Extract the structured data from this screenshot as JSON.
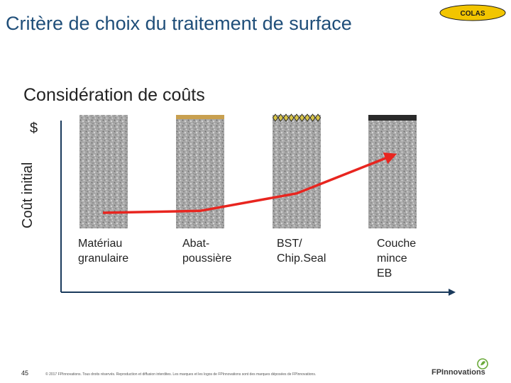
{
  "slide": {
    "title": "Critère de choix du traitement de surface",
    "subtitle": "Considération de coûts",
    "page_number": "45",
    "footer": "© 2017 FPInnovations. Tous droits réservés. Reproduction et diffusion interdites. Les marques et les logos de FPInnovations sont des marques déposées de FPInnovations."
  },
  "logos": {
    "colas": "COLAS",
    "fpinnovations": "FPInnovations"
  },
  "axis": {
    "y_label": "Coût initial",
    "y_symbol": "$"
  },
  "chart_data": {
    "type": "line",
    "categories": [
      "Matériau\ngranulaire",
      "Abat-\npoussière",
      "BST/\nChip.Seal",
      "Couche\nmince\nEB"
    ],
    "values": [
      1,
      1.1,
      2,
      4
    ],
    "ylim": [
      0,
      4.5
    ]
  },
  "colors": {
    "title": "#1f4e79",
    "line": "#e8251f",
    "axis": "#1a3a5c",
    "layer_dust": "#c8a050",
    "layer_chipseal": "#d9c54a",
    "layer_eb": "#2a2a2a",
    "colas_yellow": "#f2c500"
  }
}
